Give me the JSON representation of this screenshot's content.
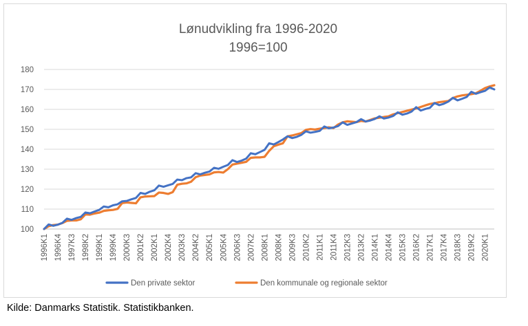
{
  "chart_data": {
    "type": "line",
    "title": "Lønudvikling fra 1996-2020",
    "subtitle": "1996=100",
    "xlabel": "",
    "ylabel": "",
    "ylim": [
      100,
      180
    ],
    "y_ticks": [
      100,
      110,
      120,
      130,
      140,
      150,
      160,
      170,
      180
    ],
    "grid": true,
    "legend_position": "bottom",
    "x_tick_labels": [
      "1996K1",
      "1996K4",
      "1997K3",
      "1998K2",
      "1999K1",
      "1999K4",
      "2000K3",
      "2001K2",
      "2002K1",
      "2002K4",
      "2003K3",
      "2004K2",
      "2005K1",
      "2005K4",
      "2006K3",
      "2007K2",
      "2008K1",
      "2008K4",
      "2009K3",
      "2010K2",
      "2011K1",
      "2011K4",
      "2012K3",
      "2013K2",
      "2014K1",
      "2014K4",
      "2015K3",
      "2016K2",
      "2017K1",
      "2017K4",
      "2018K3",
      "2019K2",
      "2020K1"
    ],
    "x_start_quarter": "1996K1",
    "series": [
      {
        "name": "Den private sektor",
        "color": "#4472c4",
        "values": [
          100.0,
          102.3,
          101.6,
          102.2,
          103.1,
          105.2,
          104.6,
          105.5,
          106.1,
          108.3,
          107.9,
          108.8,
          109.6,
          111.3,
          110.9,
          111.9,
          112.4,
          113.9,
          114.1,
          114.9,
          115.6,
          118.1,
          117.6,
          118.7,
          119.4,
          121.8,
          121.2,
          121.9,
          122.6,
          124.8,
          124.5,
          125.5,
          125.9,
          128.0,
          127.4,
          128.2,
          128.8,
          130.7,
          130.2,
          131.2,
          132.1,
          134.5,
          133.6,
          134.3,
          135.3,
          138.0,
          137.5,
          138.6,
          139.7,
          143.0,
          142.4,
          143.6,
          144.9,
          146.5,
          145.6,
          146.2,
          147.2,
          149.0,
          148.3,
          148.7,
          149.2,
          151.4,
          150.5,
          150.9,
          151.6,
          153.5,
          152.2,
          152.9,
          153.6,
          155.1,
          153.9,
          154.4,
          155.2,
          156.5,
          155.4,
          155.9,
          156.7,
          158.5,
          157.3,
          157.9,
          158.9,
          161.1,
          159.4,
          160.2,
          160.8,
          163.2,
          162.1,
          162.8,
          163.9,
          165.8,
          164.5,
          165.3,
          166.2,
          168.8,
          167.8,
          168.6,
          169.3,
          171.0,
          170.0
        ]
      },
      {
        "name": "Den kommunale og regionale sektor",
        "color": "#ed7d31",
        "values": [
          100.0,
          101.4,
          102.0,
          102.2,
          103.0,
          104.1,
          104.3,
          104.3,
          104.9,
          107.3,
          107.2,
          107.8,
          108.2,
          109.1,
          109.4,
          109.6,
          110.1,
          113.0,
          113.3,
          113.1,
          112.9,
          115.9,
          116.3,
          116.4,
          116.5,
          118.3,
          118.1,
          117.6,
          118.5,
          122.2,
          122.7,
          122.9,
          123.7,
          126.0,
          126.8,
          127.1,
          127.4,
          128.4,
          128.6,
          128.3,
          130.0,
          132.3,
          132.8,
          133.2,
          133.7,
          135.7,
          135.9,
          135.9,
          136.2,
          139.2,
          141.5,
          142.3,
          143.0,
          146.5,
          146.9,
          147.5,
          148.1,
          149.7,
          150.1,
          149.9,
          150.3,
          150.6,
          151.0,
          150.6,
          152.4,
          153.5,
          154.0,
          153.8,
          153.6,
          154.2,
          153.9,
          154.7,
          155.5,
          155.8,
          156.2,
          156.5,
          157.5,
          158.1,
          158.7,
          159.3,
          159.9,
          160.4,
          161.2,
          162.0,
          162.7,
          163.1,
          163.6,
          163.9,
          164.2,
          165.7,
          166.5,
          167.0,
          167.3,
          167.6,
          168.1,
          169.3,
          170.7,
          171.5,
          172.1
        ]
      }
    ]
  },
  "source_note": "Kilde: Danmarks Statistik. Statistikbanken."
}
